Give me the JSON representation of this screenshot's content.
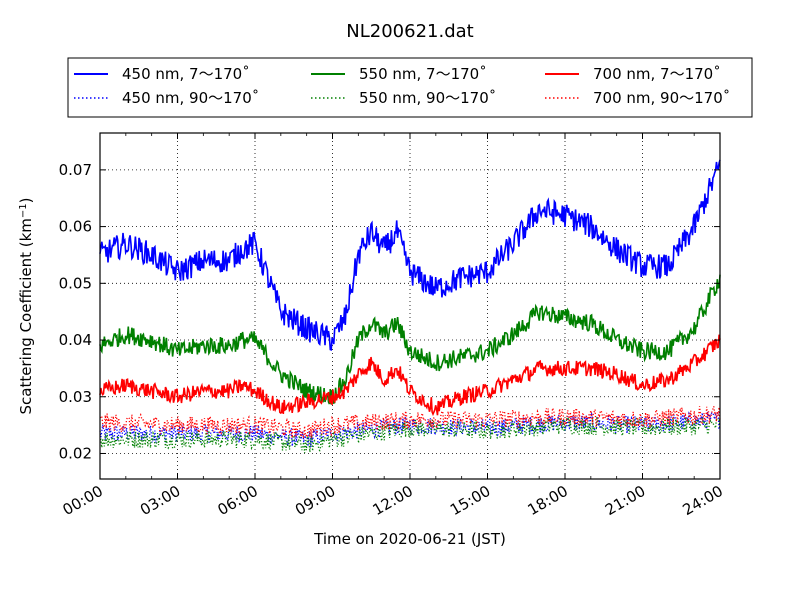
{
  "chart_data": {
    "type": "line",
    "title": "NL200621.dat",
    "xlabel": "Time on 2020-06-21 (JST)",
    "ylabel": "Scattering Coefficient (km",
    "ylabel_sup": "−1",
    "ylabel_tail": ")",
    "xlim_hours": [
      0,
      24
    ],
    "ylim": [
      0.0155,
      0.0765
    ],
    "grid": true,
    "grid_style": "dotted",
    "legend_position": "top",
    "x_ticks": [
      {
        "hour": 0,
        "label": "00:00"
      },
      {
        "hour": 3,
        "label": "03:00"
      },
      {
        "hour": 6,
        "label": "06:00"
      },
      {
        "hour": 9,
        "label": "09:00"
      },
      {
        "hour": 12,
        "label": "12:00"
      },
      {
        "hour": 15,
        "label": "15:00"
      },
      {
        "hour": 18,
        "label": "18:00"
      },
      {
        "hour": 21,
        "label": "21:00"
      },
      {
        "hour": 24,
        "label": "24:00"
      }
    ],
    "y_ticks": [
      {
        "value": 0.02,
        "label": "0.02"
      },
      {
        "value": 0.03,
        "label": "0.03"
      },
      {
        "value": 0.04,
        "label": "0.04"
      },
      {
        "value": 0.05,
        "label": "0.05"
      },
      {
        "value": 0.06,
        "label": "0.06"
      },
      {
        "value": 0.07,
        "label": "0.07"
      }
    ],
    "series": [
      {
        "name": "450 nm, 7～170˚",
        "color": "#0000ff",
        "style": "solid",
        "noise": 0.0022,
        "x": [
          0,
          1,
          2,
          3,
          4,
          5,
          5.5,
          6,
          7,
          8,
          9,
          9.5,
          10,
          10.5,
          11,
          11.5,
          12,
          13,
          14,
          15,
          16,
          17,
          18,
          19,
          20,
          21,
          22,
          23,
          24
        ],
        "y": [
          0.055,
          0.057,
          0.055,
          0.052,
          0.054,
          0.054,
          0.056,
          0.057,
          0.045,
          0.042,
          0.04,
          0.044,
          0.055,
          0.059,
          0.056,
          0.059,
          0.052,
          0.049,
          0.051,
          0.052,
          0.057,
          0.063,
          0.062,
          0.06,
          0.056,
          0.053,
          0.053,
          0.06,
          0.071
        ]
      },
      {
        "name": "450 nm, 90～170˚",
        "color": "#0000ff",
        "style": "dotted",
        "noise": 0.0016,
        "x": [
          0,
          3,
          6,
          8,
          9,
          12,
          15,
          18,
          21,
          24
        ],
        "y": [
          0.0235,
          0.0235,
          0.0235,
          0.0225,
          0.0235,
          0.025,
          0.0245,
          0.0255,
          0.025,
          0.026
        ]
      },
      {
        "name": "550 nm, 7～170˚",
        "color": "#008000",
        "style": "solid",
        "noise": 0.0016,
        "x": [
          0,
          1,
          2,
          3,
          4,
          5,
          5.5,
          6,
          7,
          8,
          9,
          9.5,
          10,
          10.5,
          11,
          11.5,
          12,
          13,
          14,
          15,
          16,
          17,
          18,
          19,
          20,
          21,
          22,
          23,
          24
        ],
        "y": [
          0.039,
          0.041,
          0.04,
          0.038,
          0.039,
          0.039,
          0.04,
          0.04,
          0.034,
          0.031,
          0.03,
          0.033,
          0.04,
          0.043,
          0.041,
          0.043,
          0.038,
          0.036,
          0.037,
          0.038,
          0.041,
          0.045,
          0.044,
          0.043,
          0.04,
          0.038,
          0.038,
          0.042,
          0.051
        ]
      },
      {
        "name": "550 nm, 90～170˚",
        "color": "#008000",
        "style": "dotted",
        "noise": 0.0016,
        "x": [
          0,
          3,
          6,
          8,
          9,
          12,
          15,
          18,
          21,
          24
        ],
        "y": [
          0.0225,
          0.0225,
          0.0225,
          0.0215,
          0.0225,
          0.0245,
          0.024,
          0.025,
          0.0245,
          0.025
        ]
      },
      {
        "name": "700 nm, 7～170˚",
        "color": "#ff0000",
        "style": "solid",
        "noise": 0.0014,
        "x": [
          0,
          1,
          2,
          3,
          4,
          5,
          5.5,
          6,
          7,
          8,
          9,
          9.5,
          10,
          10.5,
          11,
          11.5,
          12,
          13,
          14,
          15,
          16,
          17,
          18,
          19,
          20,
          21,
          22,
          23,
          24
        ],
        "y": [
          0.031,
          0.032,
          0.031,
          0.03,
          0.031,
          0.031,
          0.032,
          0.031,
          0.028,
          0.029,
          0.03,
          0.031,
          0.034,
          0.036,
          0.033,
          0.035,
          0.031,
          0.028,
          0.03,
          0.031,
          0.033,
          0.035,
          0.035,
          0.035,
          0.034,
          0.032,
          0.033,
          0.036,
          0.04
        ]
      },
      {
        "name": "700 nm, 90～170˚",
        "color": "#ff0000",
        "style": "dotted",
        "noise": 0.0016,
        "x": [
          0,
          3,
          6,
          8,
          9,
          12,
          15,
          18,
          21,
          24
        ],
        "y": [
          0.0255,
          0.025,
          0.025,
          0.024,
          0.025,
          0.026,
          0.026,
          0.0265,
          0.026,
          0.027
        ]
      }
    ]
  }
}
